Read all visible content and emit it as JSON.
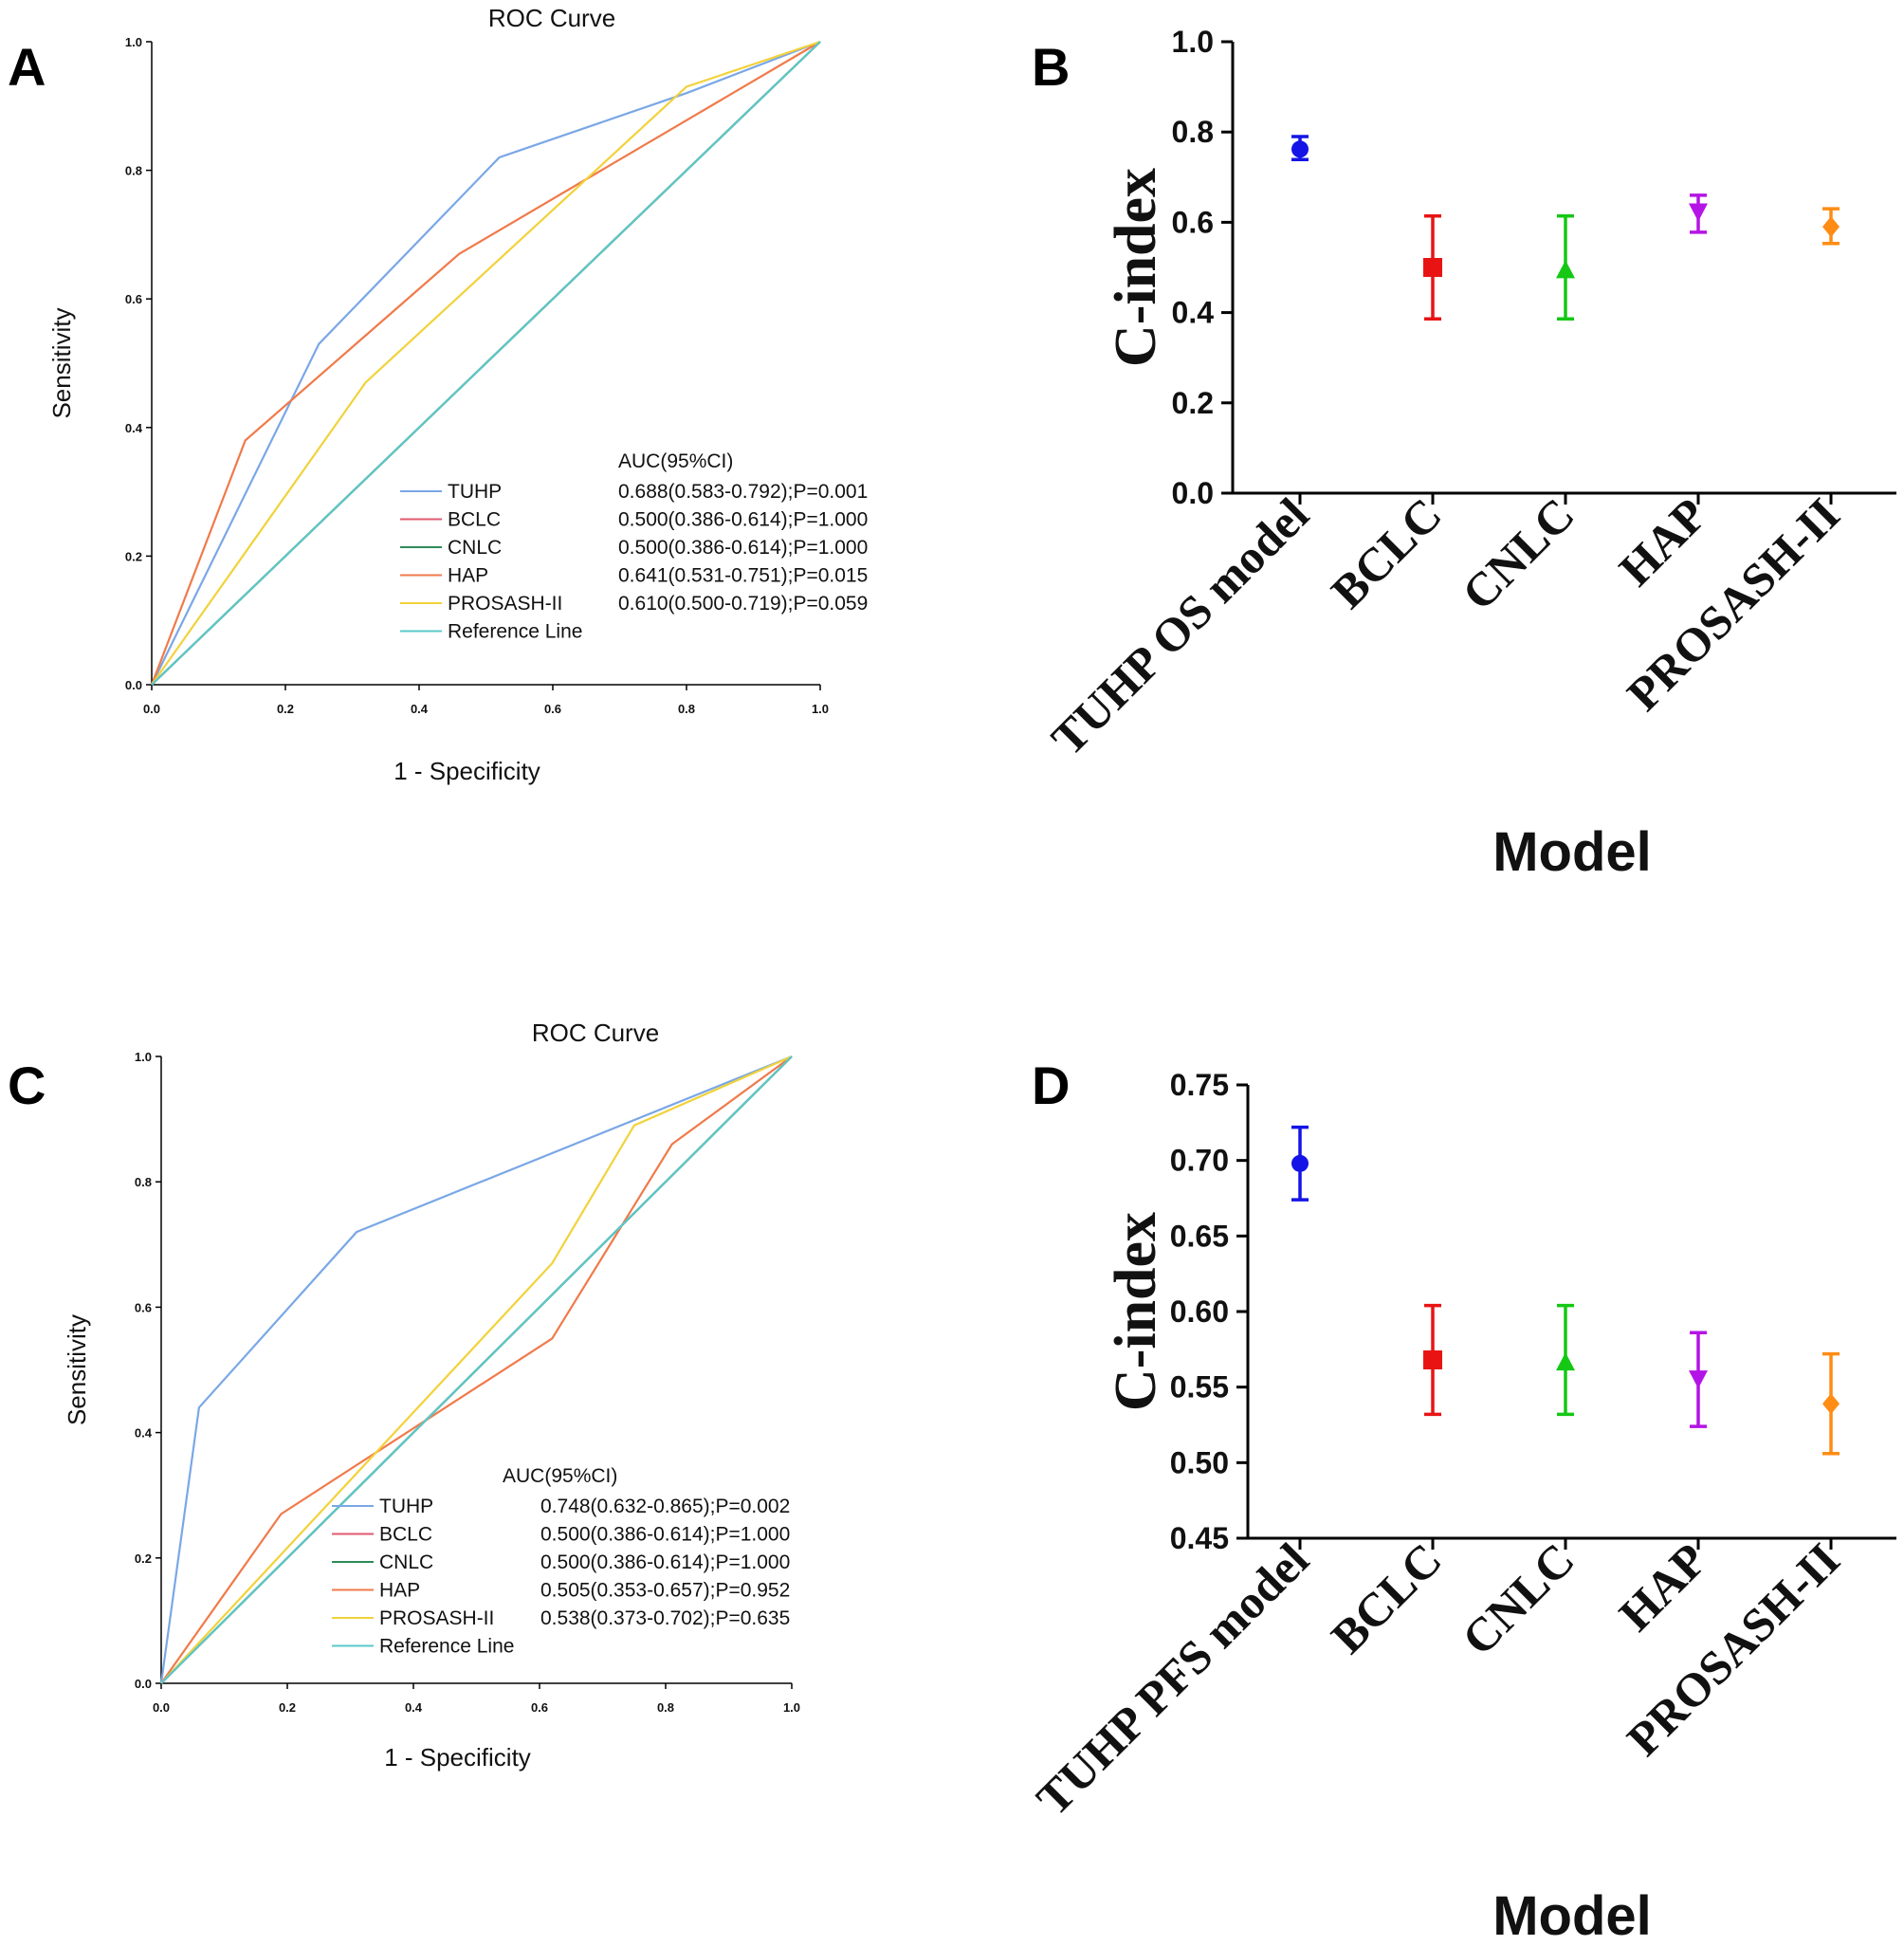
{
  "panels": {
    "A": "A",
    "B": "B",
    "C": "C",
    "D": "D"
  },
  "chart_data": [
    {
      "id": "A",
      "type": "line",
      "title": "ROC Curve",
      "xlabel": "1 - Specificity",
      "ylabel": "Sensitivity",
      "xlim": [
        0,
        1
      ],
      "ylim": [
        0,
        1
      ],
      "ticks": [
        "0.0",
        "0.2",
        "0.4",
        "0.6",
        "0.8",
        "1.0"
      ],
      "legend_title": "AUC(95%CI)",
      "series": [
        {
          "name": "TUHP",
          "color": "#7aa7e6",
          "auc": "0.688(0.583-0.792);P=0.001",
          "points": [
            [
              0,
              0
            ],
            [
              0.25,
              0.53
            ],
            [
              0.52,
              0.82
            ],
            [
              0.8,
              0.92
            ],
            [
              1,
              1
            ]
          ]
        },
        {
          "name": "BCLC",
          "color": "#e05a6e",
          "auc": "0.500(0.386-0.614);P=1.000",
          "points": [
            [
              0,
              0
            ],
            [
              1,
              1
            ]
          ]
        },
        {
          "name": "CNLC",
          "color": "#2e8b57",
          "auc": "0.500(0.386-0.614);P=1.000",
          "points": [
            [
              0,
              0
            ],
            [
              1,
              1
            ]
          ]
        },
        {
          "name": "HAP",
          "color": "#f07a4a",
          "auc": "0.641(0.531-0.751);P=0.015",
          "points": [
            [
              0,
              0
            ],
            [
              0.14,
              0.38
            ],
            [
              0.46,
              0.67
            ],
            [
              1,
              1
            ]
          ]
        },
        {
          "name": "PROSASH-II",
          "color": "#f2d23b",
          "auc": "0.610(0.500-0.719);P=0.059",
          "points": [
            [
              0,
              0
            ],
            [
              0.32,
              0.47
            ],
            [
              0.8,
              0.93
            ],
            [
              1,
              1
            ]
          ]
        },
        {
          "name": "Reference Line",
          "color": "#5bc8c8",
          "auc": "",
          "points": [
            [
              0,
              0
            ],
            [
              1,
              1
            ]
          ]
        }
      ]
    },
    {
      "id": "B",
      "type": "scatter",
      "ylabel": "C-index",
      "xlabel": "Model",
      "ylim": [
        0,
        1.0
      ],
      "yticks": [
        "0.0",
        "0.2",
        "0.4",
        "0.6",
        "0.8",
        "1.0"
      ],
      "categories": [
        "TUHP OS model",
        "BCLC",
        "CNLC",
        "HAP",
        "PROSASH-II"
      ],
      "values": [
        0.762,
        0.5,
        0.493,
        0.625,
        0.59
      ],
      "lower": [
        0.739,
        0.386,
        0.386,
        0.578,
        0.553
      ],
      "upper": [
        0.79,
        0.614,
        0.614,
        0.66,
        0.63
      ],
      "colors": [
        "#1414e6",
        "#e81414",
        "#14c814",
        "#b414e6",
        "#ff8c14"
      ],
      "markers": [
        "circle",
        "square",
        "triangle-up",
        "triangle-down",
        "diamond"
      ]
    },
    {
      "id": "C",
      "type": "line",
      "title": "ROC Curve",
      "xlabel": "1 - Specificity",
      "ylabel": "Sensitivity",
      "xlim": [
        0,
        1
      ],
      "ylim": [
        0,
        1
      ],
      "ticks": [
        "0.0",
        "0.2",
        "0.4",
        "0.6",
        "0.8",
        "1.0"
      ],
      "legend_title": "AUC(95%CI)",
      "series": [
        {
          "name": "TUHP",
          "color": "#7aa7e6",
          "auc": "0.748(0.632-0.865);P=0.002",
          "points": [
            [
              0,
              0
            ],
            [
              0.06,
              0.44
            ],
            [
              0.31,
              0.72
            ],
            [
              1,
              1
            ]
          ]
        },
        {
          "name": "BCLC",
          "color": "#e05a6e",
          "auc": "0.500(0.386-0.614);P=1.000",
          "points": [
            [
              0,
              0
            ],
            [
              1,
              1
            ]
          ]
        },
        {
          "name": "CNLC",
          "color": "#2e8b57",
          "auc": "0.500(0.386-0.614);P=1.000",
          "points": [
            [
              0,
              0
            ],
            [
              1,
              1
            ]
          ]
        },
        {
          "name": "HAP",
          "color": "#f07a4a",
          "auc": "0.505(0.353-0.657);P=0.952",
          "points": [
            [
              0,
              0
            ],
            [
              0.19,
              0.27
            ],
            [
              0.62,
              0.55
            ],
            [
              0.81,
              0.86
            ],
            [
              1,
              1
            ]
          ]
        },
        {
          "name": "PROSASH-II",
          "color": "#f2d23b",
          "auc": "0.538(0.373-0.702);P=0.635",
          "points": [
            [
              0,
              0
            ],
            [
              0.62,
              0.67
            ],
            [
              0.75,
              0.89
            ],
            [
              1,
              1
            ]
          ]
        },
        {
          "name": "Reference Line",
          "color": "#5bc8c8",
          "auc": "",
          "points": [
            [
              0,
              0
            ],
            [
              1,
              1
            ]
          ]
        }
      ]
    },
    {
      "id": "D",
      "type": "scatter",
      "ylabel": "C-index",
      "xlabel": "Model",
      "ylim": [
        0.45,
        0.75
      ],
      "yticks": [
        "0.45",
        "0.50",
        "0.55",
        "0.60",
        "0.65",
        "0.70",
        "0.75"
      ],
      "categories": [
        "TUHP PFS model",
        "BCLC",
        "CNLC",
        "HAP",
        "PROSASH-II"
      ],
      "values": [
        0.698,
        0.568,
        0.566,
        0.556,
        0.539
      ],
      "lower": [
        0.674,
        0.532,
        0.532,
        0.524,
        0.506
      ],
      "upper": [
        0.722,
        0.604,
        0.604,
        0.586,
        0.572
      ],
      "colors": [
        "#1414e6",
        "#e81414",
        "#14c814",
        "#b414e6",
        "#ff8c14"
      ],
      "markers": [
        "circle",
        "square",
        "triangle-up",
        "triangle-down",
        "diamond"
      ]
    }
  ]
}
